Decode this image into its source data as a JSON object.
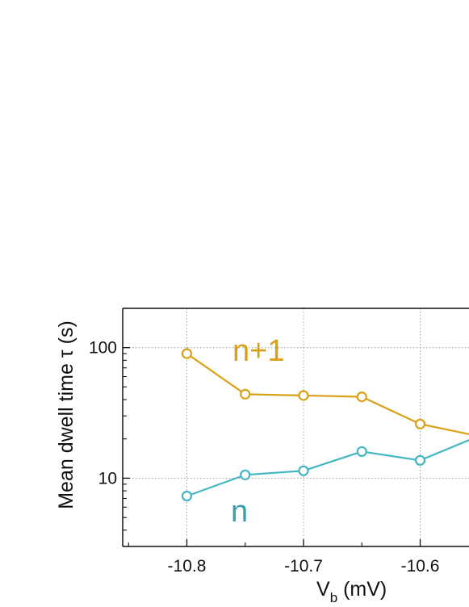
{
  "chart_data": {
    "type": "line",
    "xlabel_main": "V",
    "xlabel_sub": "b",
    "xlabel_unit": " (mV)",
    "ylabel": "Mean dwell time τ (s)",
    "ylog": true,
    "grid": true,
    "xlim": [
      -10.855,
      -10.545
    ],
    "ylim": [
      3,
      200
    ],
    "xticks": [
      -10.8,
      -10.7,
      -10.6
    ],
    "xtick_labels": [
      "-10.8",
      "-10.7",
      "-10.6"
    ],
    "yticks": [
      10,
      100
    ],
    "ytick_labels": [
      "10",
      "100"
    ],
    "x": [
      -10.8,
      -10.75,
      -10.7,
      -10.65,
      -10.6,
      -10.55
    ],
    "series": [
      {
        "name": "n+1",
        "color": "#D8A117",
        "values": [
          90,
          44,
          43,
          42,
          26,
          21
        ]
      },
      {
        "name": "n",
        "color": "#45B7C3",
        "values": [
          7.3,
          10.6,
          11.4,
          16,
          13.7,
          21
        ]
      }
    ]
  }
}
